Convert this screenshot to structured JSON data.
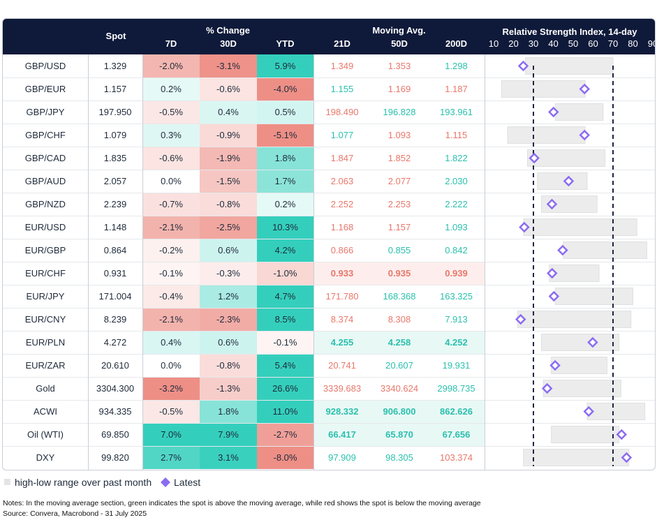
{
  "headers": {
    "spot": "Spot",
    "pct_change": "% Change",
    "d7": "7D",
    "d30": "30D",
    "ytd": "YTD",
    "moving_avg": "Moving Avg.",
    "ma21": "21D",
    "ma50": "50D",
    "ma200": "200D",
    "rsi_title": "Relative Strength Index, 14-day"
  },
  "colors": {
    "header_bg": "#0f1a3a",
    "red_text": "#e8776b",
    "green_text": "#2bc0ad",
    "pos_strong": "#34cfbc",
    "neg_strong": "#ee8f86",
    "range_bar": "#ececec",
    "latest_marker": "#8b6cf0"
  },
  "rows": [
    {
      "name": "GBP/USD",
      "spot": "1.329",
      "d7": "-2.0%",
      "d30": "-3.1%",
      "ytd": "5.9%",
      "ma21": "1.349",
      "ma50": "1.353",
      "ma200": "1.298"
    },
    {
      "name": "GBP/EUR",
      "spot": "1.157",
      "d7": "0.2%",
      "d30": "-0.6%",
      "ytd": "-4.0%",
      "ma21": "1.155",
      "ma50": "1.169",
      "ma200": "1.187"
    },
    {
      "name": "GBP/JPY",
      "spot": "197.950",
      "d7": "-0.5%",
      "d30": "0.4%",
      "ytd": "0.5%",
      "ma21": "198.490",
      "ma50": "196.828",
      "ma200": "193.961"
    },
    {
      "name": "GBP/CHF",
      "spot": "1.079",
      "d7": "0.3%",
      "d30": "-0.9%",
      "ytd": "-5.1%",
      "ma21": "1.077",
      "ma50": "1.093",
      "ma200": "1.115"
    },
    {
      "name": "GBP/CAD",
      "spot": "1.835",
      "d7": "-0.6%",
      "d30": "-1.9%",
      "ytd": "1.8%",
      "ma21": "1.847",
      "ma50": "1.852",
      "ma200": "1.822"
    },
    {
      "name": "GBP/AUD",
      "spot": "2.057",
      "d7": "0.0%",
      "d30": "-1.5%",
      "ytd": "1.7%",
      "ma21": "2.063",
      "ma50": "2.077",
      "ma200": "2.030"
    },
    {
      "name": "GBP/NZD",
      "spot": "2.239",
      "d7": "-0.7%",
      "d30": "-0.8%",
      "ytd": "0.2%",
      "ma21": "2.252",
      "ma50": "2.253",
      "ma200": "2.222"
    },
    {
      "name": "EUR/USD",
      "spot": "1.148",
      "d7": "-2.1%",
      "d30": "-2.5%",
      "ytd": "10.3%",
      "ma21": "1.168",
      "ma50": "1.157",
      "ma200": "1.093"
    },
    {
      "name": "EUR/GBP",
      "spot": "0.864",
      "d7": "-0.2%",
      "d30": "0.6%",
      "ytd": "4.2%",
      "ma21": "0.866",
      "ma50": "0.855",
      "ma200": "0.842"
    },
    {
      "name": "EUR/CHF",
      "spot": "0.931",
      "d7": "-0.1%",
      "d30": "-0.3%",
      "ytd": "-1.0%",
      "ma21": "0.933",
      "ma50": "0.935",
      "ma200": "0.939"
    },
    {
      "name": "EUR/JPY",
      "spot": "171.004",
      "d7": "-0.4%",
      "d30": "1.2%",
      "ytd": "4.7%",
      "ma21": "171.780",
      "ma50": "168.368",
      "ma200": "163.325"
    },
    {
      "name": "EUR/CNY",
      "spot": "8.239",
      "d7": "-2.1%",
      "d30": "-2.3%",
      "ytd": "8.5%",
      "ma21": "8.374",
      "ma50": "8.308",
      "ma200": "7.913"
    },
    {
      "name": "EUR/PLN",
      "spot": "4.272",
      "d7": "0.4%",
      "d30": "0.6%",
      "ytd": "-0.1%",
      "ma21": "4.255",
      "ma50": "4.258",
      "ma200": "4.252"
    },
    {
      "name": "EUR/ZAR",
      "spot": "20.610",
      "d7": "0.0%",
      "d30": "-0.8%",
      "ytd": "5.4%",
      "ma21": "20.741",
      "ma50": "20.607",
      "ma200": "19.931"
    },
    {
      "name": "Gold",
      "spot": "3304.300",
      "d7": "-3.2%",
      "d30": "-1.3%",
      "ytd": "26.6%",
      "ma21": "3339.683",
      "ma50": "3340.624",
      "ma200": "2998.735"
    },
    {
      "name": "ACWI",
      "spot": "934.335",
      "d7": "-0.5%",
      "d30": "1.8%",
      "ytd": "11.0%",
      "ma21": "928.332",
      "ma50": "906.800",
      "ma200": "862.626"
    },
    {
      "name": "Oil (WTI)",
      "spot": "69.850",
      "d7": "7.0%",
      "d30": "7.9%",
      "ytd": "-2.7%",
      "ma21": "66.417",
      "ma50": "65.870",
      "ma200": "67.656"
    },
    {
      "name": "DXY",
      "spot": "99.820",
      "d7": "2.7%",
      "d30": "3.1%",
      "ytd": "-8.0%",
      "ma21": "97.909",
      "ma50": "98.305",
      "ma200": "103.374"
    }
  ],
  "chart_data": {
    "type": "bar",
    "title": "Relative Strength Index, 14-day",
    "xlim": [
      10,
      90
    ],
    "x_ticks": [
      "10",
      "20",
      "30",
      "40",
      "50",
      "60",
      "70",
      "80",
      "90"
    ],
    "reference_lines": [
      30,
      70
    ],
    "categories": [
      "GBP/USD",
      "GBP/EUR",
      "GBP/JPY",
      "GBP/CHF",
      "GBP/CAD",
      "GBP/AUD",
      "GBP/NZD",
      "EUR/USD",
      "EUR/GBP",
      "EUR/CHF",
      "EUR/JPY",
      "EUR/CNY",
      "EUR/PLN",
      "EUR/ZAR",
      "Gold",
      "ACWI",
      "Oil (WTI)",
      "DXY"
    ],
    "series": [
      {
        "name": "high-low range over past month",
        "low": [
          26,
          14,
          41,
          17,
          27,
          32,
          34,
          25,
          45,
          38,
          41,
          22,
          34,
          39,
          35,
          57,
          39,
          25
        ],
        "high": [
          70,
          56,
          65,
          56,
          66,
          57,
          62,
          82,
          87,
          63,
          80,
          79,
          73,
          67,
          74,
          86,
          73,
          78
        ]
      },
      {
        "name": "Latest",
        "values": [
          24.9,
          55.7,
          40.1,
          55.7,
          30.4,
          47.7,
          39.3,
          25.4,
          44.7,
          39.4,
          40.3,
          23.6,
          59.8,
          40.9,
          36.9,
          57.8,
          74.3,
          76.8
        ]
      }
    ]
  },
  "legend": {
    "range_label": "high-low range over past month",
    "latest_label": "Latest"
  },
  "notes": {
    "note": "Notes: In the moving average section, green indicates the spot is above the moving average, while red shows the spot is below the moving average",
    "source": "Source: Convera, Macrobond - 31 July 2025"
  }
}
